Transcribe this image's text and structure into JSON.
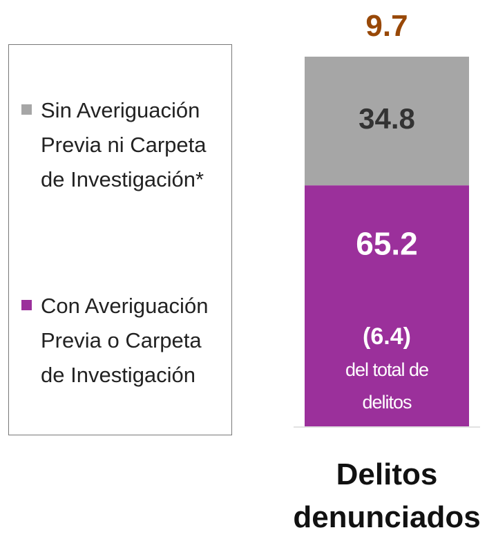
{
  "chart_data": {
    "type": "bar",
    "stacked": true,
    "categories": [
      "Delitos denunciados"
    ],
    "series": [
      {
        "name": "Sin Averiguación Previa ni Carpeta de Investigación*",
        "color": "#a6a6a6",
        "values": [
          34.8
        ]
      },
      {
        "name": "Con Averiguación Previa o Carpeta de Investigación",
        "color": "#9b309b",
        "values": [
          65.2
        ]
      }
    ],
    "ylim": [
      0,
      100
    ],
    "annotations": {
      "total": "9.7",
      "share": "(6.4)",
      "share_note": "del total de delitos"
    }
  }
}
